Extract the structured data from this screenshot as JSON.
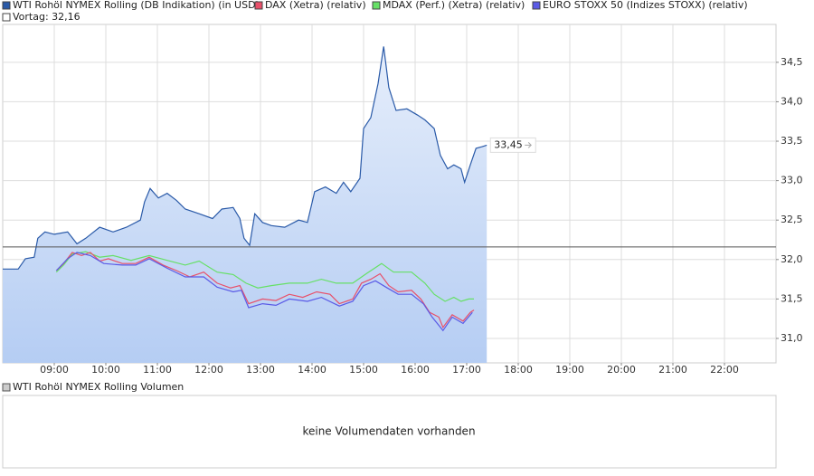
{
  "chart_data": {
    "type": "line",
    "xlim": [
      8,
      23
    ],
    "xticks": [
      {
        "value": 9,
        "label": "09:00"
      },
      {
        "value": 10,
        "label": "10:00"
      },
      {
        "value": 11,
        "label": "11:00"
      },
      {
        "value": 12,
        "label": "12:00"
      },
      {
        "value": 13,
        "label": "13:00"
      },
      {
        "value": 14,
        "label": "14:00"
      },
      {
        "value": 15,
        "label": "15:00"
      },
      {
        "value": 16,
        "label": "16:00"
      },
      {
        "value": 17,
        "label": "17:00"
      },
      {
        "value": 18,
        "label": "18:00"
      },
      {
        "value": 19,
        "label": "19:00"
      },
      {
        "value": 20,
        "label": "20:00"
      },
      {
        "value": 21,
        "label": "21:00"
      },
      {
        "value": 22,
        "label": "22:00"
      }
    ],
    "ylim": [
      30.69,
      34.98
    ],
    "yticks": [
      {
        "value": 31,
        "label": "31,0"
      },
      {
        "value": 31.5,
        "label": "31,5"
      },
      {
        "value": 32,
        "label": "32,0"
      },
      {
        "value": 32.5,
        "label": "32,5"
      },
      {
        "value": 33,
        "label": "33,0"
      },
      {
        "value": 33.5,
        "label": "33,5"
      },
      {
        "value": 34,
        "label": "34,0"
      },
      {
        "value": 34.5,
        "label": "34,5"
      }
    ],
    "grid": true,
    "reference": {
      "label": "Vortag: 32,16",
      "value": 32.16
    },
    "series": [
      {
        "name": "WTI Rohöl NYMEX Rolling (DB Indikation) (in USD)",
        "color": "#2a5aa8",
        "fill": true,
        "x": [
          8.0,
          8.3,
          8.44,
          8.61,
          8.68,
          8.82,
          9.0,
          9.26,
          9.44,
          9.61,
          9.88,
          10.14,
          10.4,
          10.67,
          10.75,
          10.86,
          11.02,
          11.19,
          11.37,
          11.54,
          11.81,
          12.07,
          12.25,
          12.47,
          12.6,
          12.68,
          12.79,
          12.89,
          13.04,
          13.21,
          13.47,
          13.74,
          13.91,
          14.05,
          14.26,
          14.47,
          14.61,
          14.75,
          14.93,
          15.0,
          15.14,
          15.28,
          15.39,
          15.49,
          15.63,
          15.84,
          16.05,
          16.19,
          16.37,
          16.49,
          16.63,
          16.75,
          16.89,
          16.96,
          17.07,
          17.18,
          17.3,
          17.39
        ],
        "values": [
          31.88,
          31.88,
          32.01,
          32.03,
          32.27,
          32.35,
          32.32,
          32.35,
          32.2,
          32.27,
          32.41,
          32.35,
          32.41,
          32.5,
          32.73,
          32.9,
          32.78,
          32.84,
          32.75,
          32.64,
          32.58,
          32.52,
          32.64,
          32.66,
          32.52,
          32.27,
          32.18,
          32.58,
          32.47,
          32.43,
          32.41,
          32.5,
          32.47,
          32.86,
          32.92,
          32.84,
          32.98,
          32.86,
          33.03,
          33.66,
          33.8,
          34.23,
          34.7,
          34.18,
          33.89,
          33.91,
          33.83,
          33.77,
          33.66,
          33.32,
          33.15,
          33.2,
          33.15,
          32.98,
          33.2,
          33.41,
          33.43,
          33.45
        ],
        "value_labels": [
          null,
          null,
          null,
          null,
          null,
          null,
          null,
          null,
          null,
          null,
          null,
          null,
          null,
          null,
          null,
          null,
          null,
          null,
          null,
          null,
          null,
          null,
          null,
          null,
          null,
          null,
          null,
          null,
          null,
          null,
          null,
          null,
          null,
          null,
          null,
          null,
          null,
          null,
          null,
          null,
          null,
          null,
          null,
          null,
          null,
          null,
          null,
          null,
          null,
          null,
          null,
          null,
          null,
          null,
          null,
          null,
          null,
          "33,45"
        ]
      },
      {
        "name": "DAX (Xetra) (relativ)",
        "color": "#e8506a",
        "x": [
          9.04,
          9.18,
          9.35,
          9.53,
          9.7,
          9.88,
          10.05,
          10.32,
          10.58,
          10.84,
          11.11,
          11.37,
          11.63,
          11.9,
          12.16,
          12.42,
          12.6,
          12.77,
          13.04,
          13.3,
          13.56,
          13.82,
          14.09,
          14.35,
          14.53,
          14.79,
          14.96,
          15.14,
          15.32,
          15.49,
          15.67,
          15.93,
          16.11,
          16.28,
          16.46,
          16.54,
          16.72,
          16.93,
          17.07,
          17.14
        ],
        "values": [
          31.86,
          31.95,
          32.09,
          32.05,
          32.09,
          31.98,
          32.01,
          31.95,
          31.95,
          32.03,
          31.93,
          31.86,
          31.78,
          31.84,
          31.7,
          31.64,
          31.67,
          31.44,
          31.5,
          31.48,
          31.56,
          31.52,
          31.59,
          31.56,
          31.44,
          31.5,
          31.7,
          31.75,
          31.82,
          31.67,
          31.59,
          31.61,
          31.5,
          31.33,
          31.27,
          31.14,
          31.3,
          31.22,
          31.33,
          31.36
        ]
      },
      {
        "name": "MDAX (Perf.) (Xetra) (relativ)",
        "color": "#66e066",
        "x": [
          9.04,
          9.18,
          9.35,
          9.61,
          9.88,
          10.14,
          10.49,
          10.84,
          11.19,
          11.54,
          11.81,
          12.16,
          12.47,
          12.72,
          12.95,
          13.21,
          13.56,
          13.91,
          14.18,
          14.47,
          14.79,
          15.05,
          15.35,
          15.58,
          15.93,
          16.19,
          16.37,
          16.58,
          16.75,
          16.89,
          17.04,
          17.14
        ],
        "values": [
          31.84,
          31.93,
          32.07,
          32.1,
          32.03,
          32.05,
          31.99,
          32.05,
          31.99,
          31.93,
          31.98,
          31.84,
          31.81,
          31.7,
          31.64,
          31.67,
          31.7,
          31.7,
          31.75,
          31.7,
          31.7,
          31.82,
          31.95,
          31.84,
          31.84,
          31.7,
          31.56,
          31.47,
          31.52,
          31.47,
          31.5,
          31.5
        ]
      },
      {
        "name": "EURO STOXX 50 (Indizes STOXX) (relativ)",
        "color": "#5a5ae6",
        "x": [
          9.04,
          9.26,
          9.44,
          9.7,
          9.96,
          10.32,
          10.58,
          10.84,
          11.19,
          11.54,
          11.9,
          12.16,
          12.47,
          12.63,
          12.77,
          13.04,
          13.3,
          13.56,
          13.91,
          14.18,
          14.53,
          14.79,
          15.0,
          15.23,
          15.46,
          15.67,
          15.93,
          16.16,
          16.33,
          16.54,
          16.72,
          16.93,
          17.11
        ],
        "values": [
          31.86,
          32.01,
          32.09,
          32.05,
          31.95,
          31.93,
          31.93,
          32.01,
          31.89,
          31.78,
          31.78,
          31.65,
          31.59,
          31.61,
          31.39,
          31.44,
          31.42,
          31.5,
          31.47,
          31.52,
          31.41,
          31.47,
          31.67,
          31.73,
          31.64,
          31.56,
          31.56,
          31.44,
          31.27,
          31.1,
          31.27,
          31.19,
          31.33
        ]
      }
    ],
    "volume": {
      "title": "WTI Rohöl NYMEX Rolling Volumen",
      "message": "keine Volumendaten vorhanden"
    }
  }
}
